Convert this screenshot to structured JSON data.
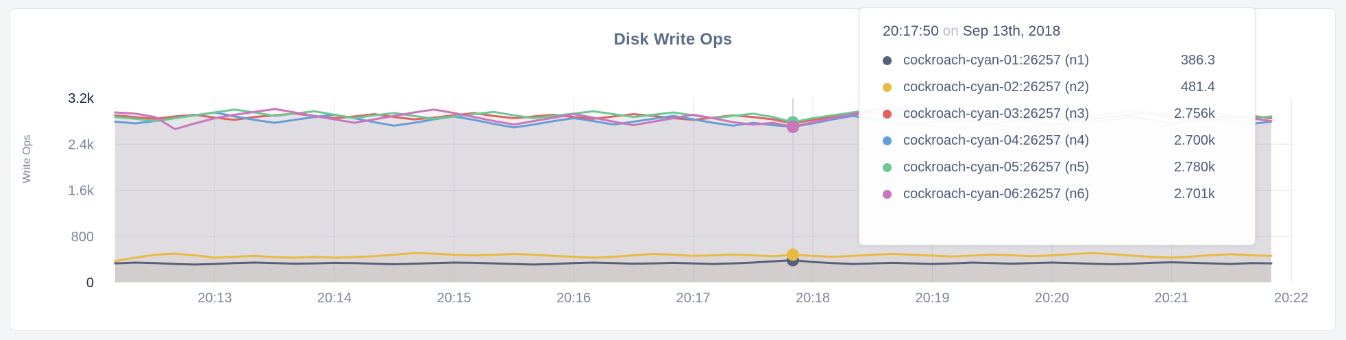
{
  "header": {
    "title": "Disk Write Ops"
  },
  "tooltip": {
    "time": "20:17:50",
    "on_word": "on",
    "date": "Sep 13th, 2018",
    "rows": [
      {
        "name": "cockroach-cyan-01:26257 (n1)",
        "value": "386.3",
        "color": "#55607a"
      },
      {
        "name": "cockroach-cyan-02:26257 (n2)",
        "value": "481.4",
        "color": "#e7ba42"
      },
      {
        "name": "cockroach-cyan-03:26257 (n3)",
        "value": "2.756k",
        "color": "#dd6460"
      },
      {
        "name": "cockroach-cyan-04:26257 (n4)",
        "value": "2.700k",
        "color": "#649ed6"
      },
      {
        "name": "cockroach-cyan-05:26257 (n5)",
        "value": "2.780k",
        "color": "#6cc796"
      },
      {
        "name": "cockroach-cyan-06:26257 (n6)",
        "value": "2.701k",
        "color": "#c976bd"
      }
    ]
  },
  "chart_data": {
    "type": "line",
    "title": "Disk Write Ops",
    "ylabel": "Write Ops",
    "ylim": [
      0,
      3200
    ],
    "grid": true,
    "legend_position": "hover-tooltip",
    "x_start_time": "20:12:10",
    "x_end_time": "20:21:50",
    "x_step_seconds": 10,
    "x_ticks": [
      "20:13",
      "20:14",
      "20:15",
      "20:16",
      "20:17",
      "20:18",
      "20:19",
      "20:20",
      "20:21",
      "20:22"
    ],
    "x_tick_first_offset_seconds": 50,
    "x_tick_interval_seconds": 60,
    "y_ticks": [
      {
        "label": "3.2k",
        "value": 3200,
        "gridline": false,
        "emphasis": true
      },
      {
        "label": "2.4k",
        "value": 2400,
        "gridline": true,
        "emphasis": false
      },
      {
        "label": "1.6k",
        "value": 1600,
        "gridline": true,
        "emphasis": false
      },
      {
        "label": "800",
        "value": 800,
        "gridline": true,
        "emphasis": false
      },
      {
        "label": "0",
        "value": 0,
        "gridline": false,
        "emphasis": true
      }
    ],
    "grid_color": "#e6e6ea",
    "hover_line_color": "#cfd2d8",
    "axis_gray": "#7c8598",
    "axis_dark": "#16243f",
    "fill_opacity": 0.09,
    "hover": {
      "index": 34,
      "time": "20:17:50",
      "date": "Sep 13th, 2018"
    },
    "series": [
      {
        "name": "cockroach-cyan-01:26257 (n1)",
        "node": "n1",
        "color": "#55607a",
        "hover_display": "386.3",
        "values": [
          330,
          345,
          335,
          320,
          310,
          320,
          335,
          345,
          335,
          325,
          330,
          340,
          335,
          325,
          315,
          325,
          335,
          345,
          340,
          330,
          320,
          310,
          320,
          335,
          345,
          335,
          325,
          330,
          340,
          330,
          320,
          330,
          345,
          365,
          386.3,
          355,
          335,
          320,
          330,
          340,
          330,
          320,
          330,
          345,
          335,
          325,
          335,
          345,
          335,
          325,
          315,
          325,
          340,
          350,
          340,
          330,
          320,
          335,
          330
        ]
      },
      {
        "name": "cockroach-cyan-02:26257 (n2)",
        "node": "n2",
        "color": "#e7ba42",
        "hover_display": "481.4",
        "values": [
          370,
          430,
          480,
          500,
          470,
          430,
          445,
          460,
          440,
          430,
          445,
          430,
          440,
          455,
          480,
          510,
          500,
          480,
          470,
          480,
          495,
          480,
          460,
          445,
          430,
          445,
          470,
          495,
          480,
          460,
          470,
          485,
          470,
          455,
          481.4,
          460,
          445,
          460,
          480,
          495,
          480,
          465,
          450,
          465,
          485,
          470,
          455,
          470,
          490,
          510,
          490,
          465,
          445,
          430,
          450,
          475,
          490,
          470,
          460
        ]
      },
      {
        "name": "cockroach-cyan-03:26257 (n3)",
        "node": "n3",
        "color": "#dd6460",
        "hover_display": "2.756k",
        "values": [
          2900,
          2870,
          2840,
          2880,
          2910,
          2860,
          2820,
          2870,
          2900,
          2930,
          2890,
          2850,
          2880,
          2920,
          2870,
          2830,
          2860,
          2900,
          2940,
          2890,
          2850,
          2880,
          2910,
          2870,
          2840,
          2880,
          2920,
          2890,
          2850,
          2820,
          2860,
          2900,
          2870,
          2830,
          2756,
          2820,
          2870,
          2910,
          2950,
          2890,
          2840,
          2880,
          2920,
          2870,
          2830,
          2860,
          2900,
          2930,
          2880,
          2840,
          2870,
          2910,
          2950,
          2900,
          2850,
          2820,
          2860,
          2890,
          2850
        ]
      },
      {
        "name": "cockroach-cyan-04:26257 (n4)",
        "node": "n4",
        "color": "#649ed6",
        "hover_display": "2.700k",
        "values": [
          2790,
          2760,
          2800,
          2850,
          2900,
          2950,
          2880,
          2820,
          2770,
          2820,
          2870,
          2910,
          2850,
          2780,
          2720,
          2770,
          2830,
          2880,
          2820,
          2750,
          2690,
          2740,
          2800,
          2850,
          2800,
          2740,
          2790,
          2840,
          2890,
          2830,
          2770,
          2720,
          2770,
          2730,
          2700,
          2760,
          2830,
          2890,
          2840,
          2780,
          2730,
          2780,
          2840,
          2800,
          2750,
          2800,
          2860,
          2900,
          2840,
          2780,
          2820,
          2870,
          2820,
          2760,
          2800,
          2850,
          2800,
          2750,
          2790
        ]
      },
      {
        "name": "cockroach-cyan-05:26257 (n5)",
        "node": "n5",
        "color": "#6cc796",
        "hover_display": "2.780k",
        "values": [
          2870,
          2840,
          2800,
          2850,
          2900,
          2950,
          3000,
          2950,
          2890,
          2930,
          2970,
          2910,
          2850,
          2900,
          2940,
          2890,
          2840,
          2880,
          2920,
          2960,
          2900,
          2850,
          2890,
          2930,
          2970,
          2920,
          2870,
          2910,
          2950,
          2900,
          2850,
          2890,
          2930,
          2870,
          2780,
          2850,
          2900,
          2950,
          3000,
          2940,
          2890,
          2930,
          2970,
          2920,
          2870,
          2910,
          2950,
          2900,
          2850,
          2890,
          2930,
          2970,
          2920,
          2870,
          2910,
          2950,
          2900,
          2850,
          2880
        ]
      },
      {
        "name": "cockroach-cyan-06:26257 (n6)",
        "node": "n6",
        "color": "#c976bd",
        "hover_display": "2.701k",
        "values": [
          2950,
          2930,
          2870,
          2660,
          2760,
          2850,
          2910,
          2960,
          3010,
          2950,
          2890,
          2830,
          2770,
          2830,
          2890,
          2950,
          3000,
          2940,
          2870,
          2800,
          2740,
          2800,
          2860,
          2920,
          2860,
          2790,
          2730,
          2790,
          2850,
          2910,
          2850,
          2780,
          2740,
          2770,
          2701,
          2780,
          2850,
          2920,
          2990,
          3050,
          2960,
          2870,
          2790,
          2850,
          2920,
          2860,
          2790,
          2730,
          2790,
          2860,
          2930,
          2990,
          2920,
          2850,
          2790,
          2840,
          2900,
          2850,
          2800
        ]
      }
    ]
  }
}
